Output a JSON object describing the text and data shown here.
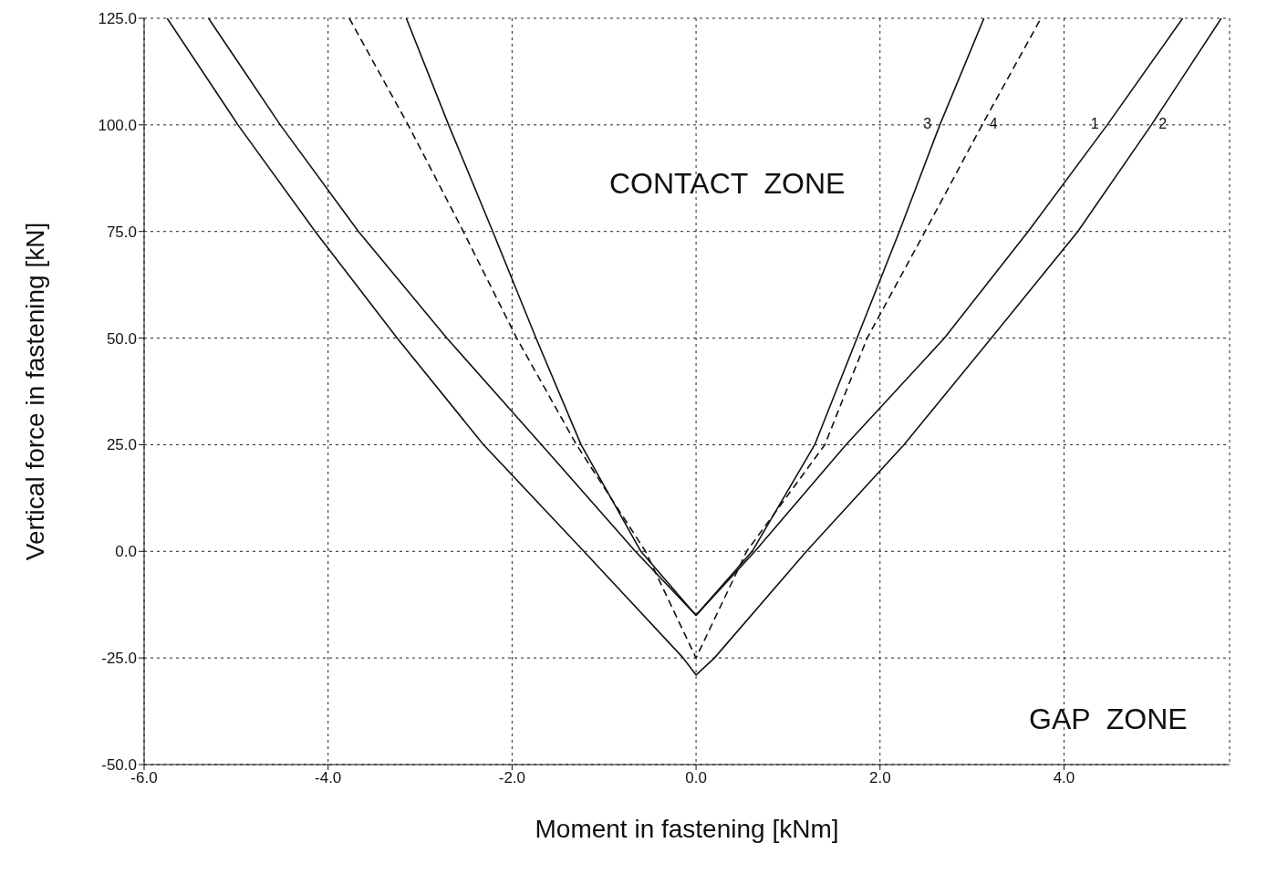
{
  "chart_data": {
    "type": "line",
    "xlabel": "Moment in fastening [kNm]",
    "ylabel": "Vertical force in fastening [kN]",
    "xlim": [
      -6,
      5.8
    ],
    "ylim": [
      -50,
      125
    ],
    "xticks": [
      {
        "value": -6,
        "label": "-6.0"
      },
      {
        "value": -4,
        "label": "-4.0"
      },
      {
        "value": -2,
        "label": "-2.0"
      },
      {
        "value": 0,
        "label": "0.0"
      },
      {
        "value": 2,
        "label": "2.0"
      },
      {
        "value": 4,
        "label": "4.0"
      }
    ],
    "yticks": [
      {
        "value": -50,
        "label": "-50.0"
      },
      {
        "value": -25,
        "label": "-25.0"
      },
      {
        "value": 0,
        "label": "0.0"
      },
      {
        "value": 25,
        "label": "25.0"
      },
      {
        "value": 50,
        "label": "50.0"
      },
      {
        "value": 75,
        "label": "75.0"
      },
      {
        "value": 100,
        "label": "100.0"
      },
      {
        "value": 125,
        "label": "125.0"
      }
    ],
    "grid": true,
    "marker": "none",
    "series": [
      {
        "name": "1",
        "color": "#111111",
        "line_style": "solid",
        "x": [
          -5.3,
          -4.52,
          -3.67,
          -2.71,
          -1.68,
          -0.66,
          0,
          0.64,
          1.63,
          2.7,
          3.61,
          4.47,
          5.29
        ],
        "values": [
          125,
          100,
          75,
          50,
          25,
          0,
          -15,
          0,
          25,
          50,
          75,
          100,
          125
        ]
      },
      {
        "name": "2",
        "color": "#111111",
        "line_style": "solid",
        "x": [
          -5.75,
          -4.98,
          -4.14,
          -3.25,
          -2.31,
          -1.22,
          -0.14,
          0,
          0.2,
          1.2,
          2.26,
          3.21,
          4.15,
          4.95,
          5.71
        ],
        "values": [
          125,
          100,
          75,
          50,
          25,
          0,
          -25,
          -29,
          -25,
          0,
          25,
          50,
          75,
          100,
          125
        ]
      },
      {
        "name": "3",
        "color": "#111111",
        "line_style": "solid",
        "x": [
          -3.15,
          -2.69,
          -2.21,
          -1.74,
          -1.25,
          -0.6,
          0,
          0.61,
          1.29,
          1.75,
          2.21,
          2.65,
          3.13
        ],
        "values": [
          125,
          100,
          75,
          50,
          25,
          0,
          -15,
          0,
          25,
          50,
          75,
          100,
          125
        ]
      },
      {
        "name": "4",
        "color": "#111111",
        "line_style": "dashed",
        "x": [
          -3.77,
          -3.13,
          -2.53,
          -1.95,
          -1.3,
          -0.55,
          0,
          0.55,
          1.4,
          1.86,
          2.49,
          3.11,
          3.75
        ],
        "values": [
          125,
          100,
          75,
          50,
          25,
          0,
          -25,
          0,
          25,
          50,
          75,
          100,
          125
        ]
      }
    ],
    "annotations": [
      "CONTACT  ZONE",
      "GAP  ZONE"
    ]
  }
}
